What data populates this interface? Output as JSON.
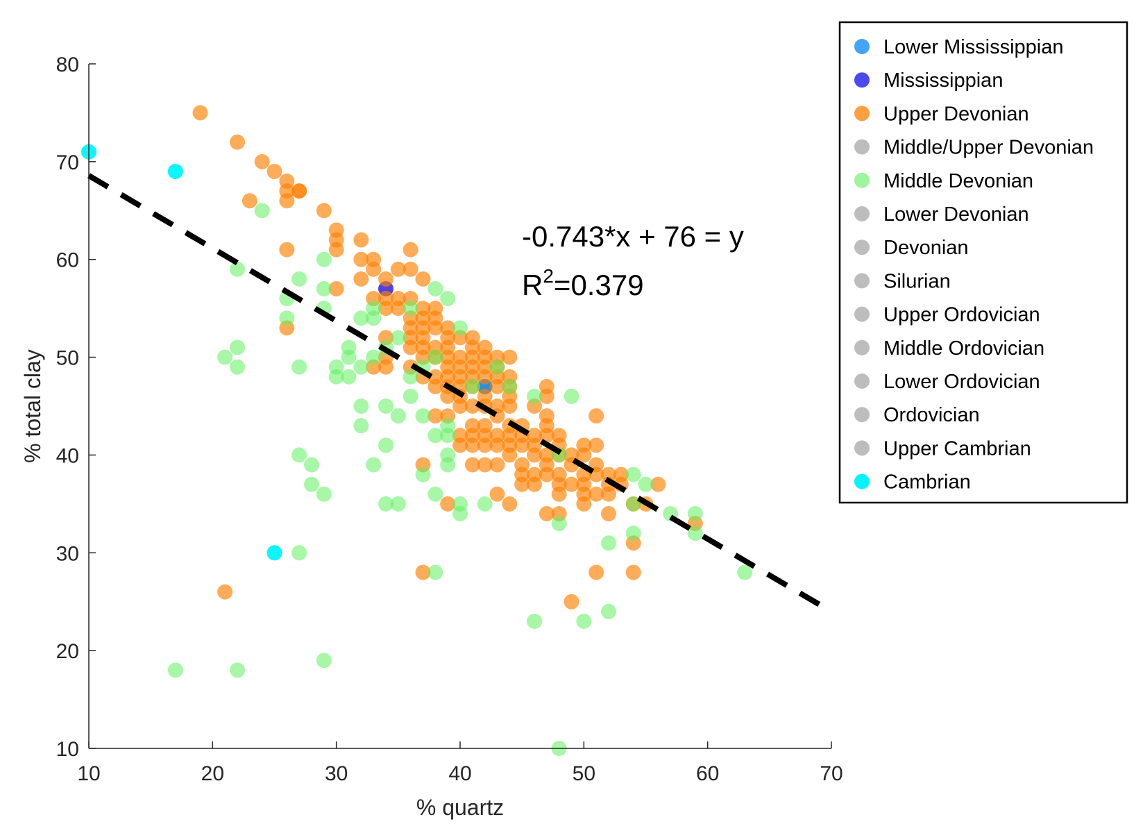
{
  "chart_data": {
    "type": "scatter",
    "xlabel": "% quartz",
    "ylabel": "% total clay",
    "xlim": [
      10,
      70
    ],
    "ylim": [
      10,
      80
    ],
    "xticks": [
      10,
      20,
      30,
      40,
      50,
      60,
      70
    ],
    "yticks": [
      10,
      20,
      30,
      40,
      50,
      60,
      70,
      80
    ],
    "grid": false,
    "legend_position": "outside-right",
    "annotation": {
      "equation": "-0.743*x + 76 = y",
      "r2_prefix": "R",
      "r2_sup": "2",
      "r2_value": "=0.379"
    },
    "fit_line": {
      "slope": -0.743,
      "intercept": 76,
      "style": "dashed",
      "color": "#000000"
    },
    "series": [
      {
        "name": "Lower Mississippian",
        "color": "#1e88e5",
        "legend_color": "#42a5f5",
        "opacity": 0.95,
        "points": [
          [
            42,
            47
          ]
        ]
      },
      {
        "name": "Mississippian",
        "color": "#3f2fd6",
        "legend_color": "#4a4af0",
        "opacity": 0.9,
        "points": [
          [
            34,
            57
          ]
        ]
      },
      {
        "name": "Upper Devonian",
        "color": "#ff7f00",
        "legend_color": "#ff9f3f",
        "opacity": 0.65,
        "points": [
          [
            19,
            75
          ],
          [
            22,
            72
          ],
          [
            23,
            66
          ],
          [
            24,
            70
          ],
          [
            25,
            69
          ],
          [
            26,
            68
          ],
          [
            26,
            67
          ],
          [
            26,
            66
          ],
          [
            26,
            61
          ],
          [
            26,
            53
          ],
          [
            27,
            67
          ],
          [
            27,
            67
          ],
          [
            29,
            65
          ],
          [
            30,
            63
          ],
          [
            30,
            62
          ],
          [
            30,
            61
          ],
          [
            30,
            57
          ],
          [
            32,
            62
          ],
          [
            32,
            60
          ],
          [
            32,
            58
          ],
          [
            33,
            60
          ],
          [
            33,
            59
          ],
          [
            33,
            56
          ],
          [
            33,
            49
          ],
          [
            34,
            58
          ],
          [
            34,
            56
          ],
          [
            34,
            55
          ],
          [
            34,
            52
          ],
          [
            34,
            50
          ],
          [
            34,
            49
          ],
          [
            35,
            59
          ],
          [
            35,
            56
          ],
          [
            35,
            55
          ],
          [
            36,
            61
          ],
          [
            36,
            59
          ],
          [
            36,
            56
          ],
          [
            36,
            54
          ],
          [
            36,
            53
          ],
          [
            36,
            52
          ],
          [
            36,
            51
          ],
          [
            36,
            49
          ],
          [
            37,
            58
          ],
          [
            37,
            55
          ],
          [
            37,
            54
          ],
          [
            37,
            53
          ],
          [
            37,
            52
          ],
          [
            37,
            51
          ],
          [
            37,
            50
          ],
          [
            37,
            48
          ],
          [
            37,
            39
          ],
          [
            37,
            28
          ],
          [
            38,
            55
          ],
          [
            38,
            54
          ],
          [
            38,
            53
          ],
          [
            38,
            51
          ],
          [
            38,
            50
          ],
          [
            38,
            48
          ],
          [
            38,
            47
          ],
          [
            38,
            44
          ],
          [
            39,
            53
          ],
          [
            39,
            52
          ],
          [
            39,
            51
          ],
          [
            39,
            50
          ],
          [
            39,
            49
          ],
          [
            39,
            48
          ],
          [
            39,
            47
          ],
          [
            39,
            46
          ],
          [
            39,
            44
          ],
          [
            39,
            35
          ],
          [
            40,
            52
          ],
          [
            40,
            50
          ],
          [
            40,
            49
          ],
          [
            40,
            48
          ],
          [
            40,
            47
          ],
          [
            40,
            46
          ],
          [
            40,
            45
          ],
          [
            40,
            42
          ],
          [
            40,
            41
          ],
          [
            41,
            52
          ],
          [
            41,
            51
          ],
          [
            41,
            50
          ],
          [
            41,
            49
          ],
          [
            41,
            48
          ],
          [
            41,
            47
          ],
          [
            41,
            45
          ],
          [
            41,
            43
          ],
          [
            41,
            42
          ],
          [
            41,
            41
          ],
          [
            41,
            39
          ],
          [
            42,
            51
          ],
          [
            42,
            50
          ],
          [
            42,
            49
          ],
          [
            42,
            48
          ],
          [
            42,
            46
          ],
          [
            42,
            45
          ],
          [
            42,
            43
          ],
          [
            42,
            42
          ],
          [
            42,
            41
          ],
          [
            42,
            39
          ],
          [
            43,
            50
          ],
          [
            43,
            49
          ],
          [
            43,
            48
          ],
          [
            43,
            47
          ],
          [
            43,
            45
          ],
          [
            43,
            44
          ],
          [
            43,
            42
          ],
          [
            43,
            41
          ],
          [
            43,
            39
          ],
          [
            43,
            36
          ],
          [
            44,
            50
          ],
          [
            44,
            48
          ],
          [
            44,
            47
          ],
          [
            44,
            46
          ],
          [
            44,
            45
          ],
          [
            44,
            43
          ],
          [
            44,
            42
          ],
          [
            44,
            41
          ],
          [
            44,
            40
          ],
          [
            44,
            35
          ],
          [
            45,
            43
          ],
          [
            45,
            42
          ],
          [
            45,
            41
          ],
          [
            45,
            39
          ],
          [
            45,
            38
          ],
          [
            45,
            37
          ],
          [
            46,
            45
          ],
          [
            46,
            42
          ],
          [
            46,
            41
          ],
          [
            46,
            40
          ],
          [
            46,
            38
          ],
          [
            46,
            37
          ],
          [
            47,
            47
          ],
          [
            47,
            46
          ],
          [
            47,
            44
          ],
          [
            47,
            43
          ],
          [
            47,
            42
          ],
          [
            47,
            40
          ],
          [
            47,
            39
          ],
          [
            47,
            38
          ],
          [
            47,
            34
          ],
          [
            48,
            42
          ],
          [
            48,
            41
          ],
          [
            48,
            40
          ],
          [
            48,
            38
          ],
          [
            48,
            37
          ],
          [
            48,
            36
          ],
          [
            48,
            34
          ],
          [
            49,
            40
          ],
          [
            49,
            39
          ],
          [
            49,
            37
          ],
          [
            49,
            25
          ],
          [
            50,
            41
          ],
          [
            50,
            40
          ],
          [
            50,
            38
          ],
          [
            50,
            37
          ],
          [
            50,
            36
          ],
          [
            50,
            35
          ],
          [
            51,
            44
          ],
          [
            51,
            41
          ],
          [
            51,
            39
          ],
          [
            51,
            38
          ],
          [
            51,
            36
          ],
          [
            51,
            28
          ],
          [
            52,
            38
          ],
          [
            52,
            37
          ],
          [
            52,
            36
          ],
          [
            52,
            34
          ],
          [
            53,
            38
          ],
          [
            53,
            37
          ],
          [
            54,
            35
          ],
          [
            54,
            31
          ],
          [
            54,
            28
          ],
          [
            55,
            35
          ],
          [
            56,
            37
          ],
          [
            59,
            33
          ],
          [
            21,
            26
          ]
        ]
      },
      {
        "name": "Middle/Upper Devonian",
        "color": "#bdbdbd",
        "legend_color": "#bdbdbd",
        "opacity": 0.9,
        "points": []
      },
      {
        "name": "Middle Devonian",
        "color": "#5ff05f",
        "legend_color": "#9ef59e",
        "opacity": 0.55,
        "points": [
          [
            17,
            18
          ],
          [
            22,
            18
          ],
          [
            22,
            59
          ],
          [
            22,
            51
          ],
          [
            22,
            49
          ],
          [
            24,
            65
          ],
          [
            26,
            56
          ],
          [
            26,
            54
          ],
          [
            27,
            58
          ],
          [
            27,
            49
          ],
          [
            27,
            40
          ],
          [
            27,
            30
          ],
          [
            28,
            39
          ],
          [
            28,
            37
          ],
          [
            29,
            60
          ],
          [
            29,
            57
          ],
          [
            29,
            55
          ],
          [
            29,
            36
          ],
          [
            29,
            19
          ],
          [
            30,
            49
          ],
          [
            30,
            48
          ],
          [
            31,
            51
          ],
          [
            31,
            50
          ],
          [
            31,
            48
          ],
          [
            32,
            54
          ],
          [
            32,
            49
          ],
          [
            32,
            45
          ],
          [
            32,
            43
          ],
          [
            33,
            55
          ],
          [
            33,
            54
          ],
          [
            33,
            50
          ],
          [
            33,
            39
          ],
          [
            34,
            51
          ],
          [
            34,
            45
          ],
          [
            34,
            41
          ],
          [
            34,
            35
          ],
          [
            35,
            52
          ],
          [
            35,
            44
          ],
          [
            35,
            35
          ],
          [
            36,
            55
          ],
          [
            36,
            48
          ],
          [
            36,
            46
          ],
          [
            37,
            49
          ],
          [
            37,
            44
          ],
          [
            37,
            38
          ],
          [
            38,
            57
          ],
          [
            38,
            50
          ],
          [
            38,
            42
          ],
          [
            38,
            36
          ],
          [
            38,
            28
          ],
          [
            39,
            56
          ],
          [
            39,
            43
          ],
          [
            39,
            42
          ],
          [
            39,
            40
          ],
          [
            39,
            39
          ],
          [
            40,
            53
          ],
          [
            40,
            35
          ],
          [
            40,
            34
          ],
          [
            41,
            47
          ],
          [
            42,
            35
          ],
          [
            43,
            49
          ],
          [
            44,
            47
          ],
          [
            46,
            46
          ],
          [
            46,
            23
          ],
          [
            48,
            40
          ],
          [
            48,
            33
          ],
          [
            48,
            10
          ],
          [
            49,
            46
          ],
          [
            50,
            23
          ],
          [
            52,
            31
          ],
          [
            52,
            24
          ],
          [
            54,
            38
          ],
          [
            54,
            35
          ],
          [
            54,
            32
          ],
          [
            55,
            37
          ],
          [
            57,
            34
          ],
          [
            59,
            34
          ],
          [
            59,
            32
          ],
          [
            63,
            28
          ],
          [
            21,
            50
          ]
        ]
      },
      {
        "name": "Lower Devonian",
        "color": "#bdbdbd",
        "legend_color": "#bdbdbd",
        "opacity": 0.9,
        "points": []
      },
      {
        "name": "Devonian",
        "color": "#bdbdbd",
        "legend_color": "#bdbdbd",
        "opacity": 0.9,
        "points": []
      },
      {
        "name": "Silurian",
        "color": "#bdbdbd",
        "legend_color": "#bdbdbd",
        "opacity": 0.9,
        "points": []
      },
      {
        "name": "Upper Ordovician",
        "color": "#bdbdbd",
        "legend_color": "#bdbdbd",
        "opacity": 0.9,
        "points": []
      },
      {
        "name": "Middle Ordovician",
        "color": "#bdbdbd",
        "legend_color": "#bdbdbd",
        "opacity": 0.9,
        "points": []
      },
      {
        "name": "Lower Ordovician",
        "color": "#bdbdbd",
        "legend_color": "#bdbdbd",
        "opacity": 0.9,
        "points": []
      },
      {
        "name": "Ordovician",
        "color": "#bdbdbd",
        "legend_color": "#bdbdbd",
        "opacity": 0.9,
        "points": []
      },
      {
        "name": "Upper Cambrian",
        "color": "#bdbdbd",
        "legend_color": "#bdbdbd",
        "opacity": 0.9,
        "points": []
      },
      {
        "name": "Cambrian",
        "color": "#00f5ff",
        "legend_color": "#00f5ff",
        "opacity": 0.95,
        "points": [
          [
            10,
            71
          ],
          [
            17,
            69
          ],
          [
            25,
            30
          ]
        ]
      }
    ]
  }
}
